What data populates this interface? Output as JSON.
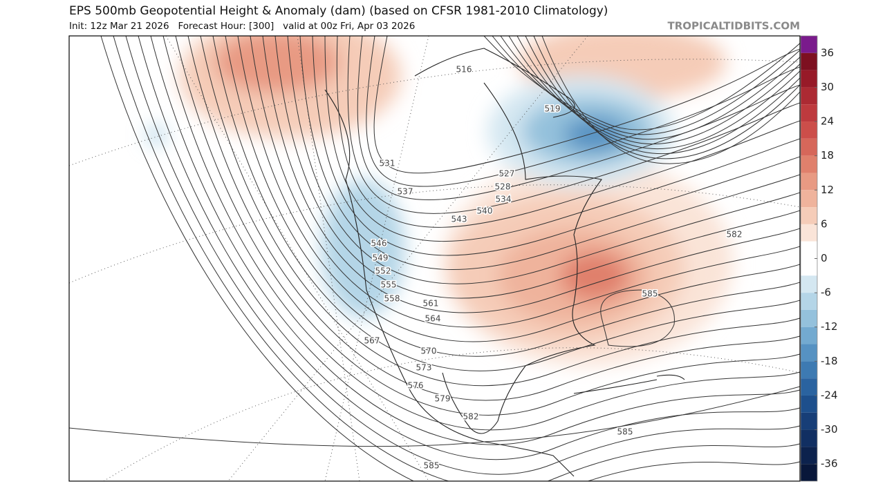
{
  "header": {
    "title": "EPS 500mb Geopotential Height & Anomaly (dam) (based on CFSR 1981-2010 Climatology)",
    "subtitle": "Init: 12z Mar 21 2026   Forecast Hour: [300]   valid at 00z Fri, Apr 03 2026",
    "watermark": "TROPICALTIDBITS.COM"
  },
  "colorbar": {
    "range": [
      -39,
      39
    ],
    "ticks": [
      36,
      30,
      24,
      18,
      12,
      6,
      0,
      -6,
      -12,
      -18,
      -24,
      -30,
      -36
    ],
    "colors": [
      "#7a1b8c",
      "#7d1020",
      "#971a28",
      "#ac2a33",
      "#be3a3e",
      "#cc4e4a",
      "#d6675a",
      "#e0806c",
      "#e89a83",
      "#efb39c",
      "#f5ccb8",
      "#fae4d8",
      "#ffffff",
      "#ffffff",
      "#d4e7f1",
      "#b4d5e7",
      "#94c1dc",
      "#73aad0",
      "#5692c2",
      "#3d7ab2",
      "#2a63a0",
      "#1d4f8c",
      "#173e77",
      "#112f62",
      "#0c224d",
      "#08173a"
    ]
  },
  "contour_labels": [
    "516",
    "519",
    "531",
    "537",
    "527",
    "528",
    "534",
    "540",
    "543",
    "546",
    "549",
    "552",
    "555",
    "558",
    "561",
    "564",
    "567",
    "570",
    "573",
    "576",
    "579",
    "582",
    "582",
    "585",
    "585",
    "585"
  ]
}
